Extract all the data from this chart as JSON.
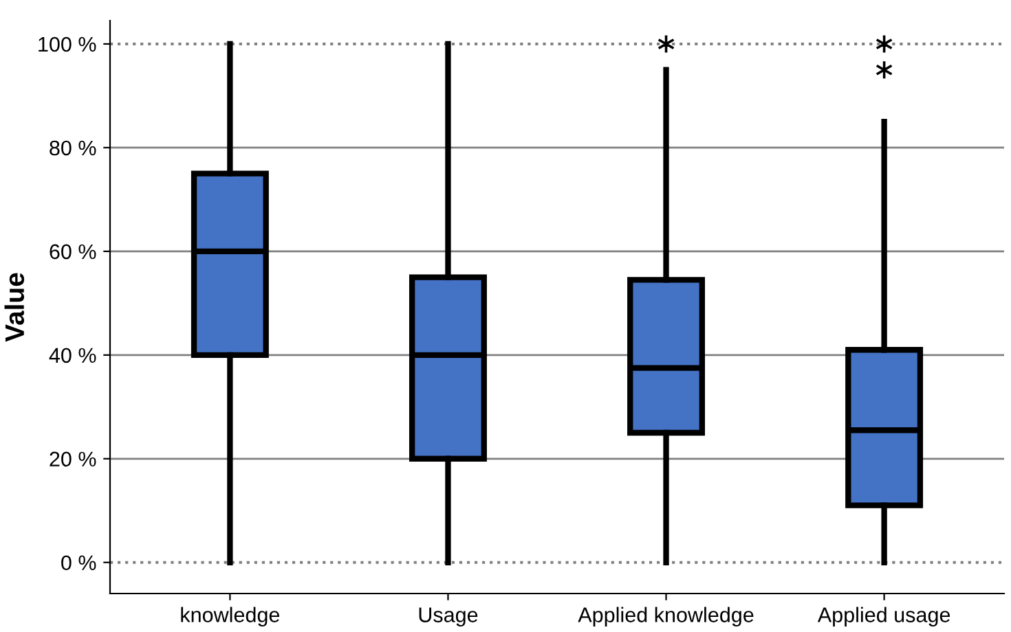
{
  "chart_data": {
    "type": "box",
    "ylabel": "Value",
    "categories": [
      "knowledge",
      "Usage",
      "Applied knowledge",
      "Applied usage"
    ],
    "color": "#4472c4",
    "boxes": [
      {
        "low": 0,
        "q1": 40,
        "median": 60,
        "q3": 75,
        "high": 100
      },
      {
        "low": 0,
        "q1": 20,
        "median": 40,
        "q3": 55,
        "high": 100
      },
      {
        "low": 0,
        "q1": 25,
        "median": 37.5,
        "q3": 54.5,
        "high": 95,
        "outliers": [
          100
        ]
      },
      {
        "low": 0,
        "q1": 11,
        "median": 25.5,
        "q3": 41,
        "high": 85,
        "outliers": [
          100,
          95
        ]
      }
    ],
    "ylim": [
      -6,
      104.5
    ],
    "yticks": [
      {
        "value": 0,
        "label": "0 %"
      },
      {
        "value": 20,
        "label": "20 %"
      },
      {
        "value": 40,
        "label": "40 %"
      },
      {
        "value": 60,
        "label": "60 %"
      },
      {
        "value": 80,
        "label": "80 %"
      },
      {
        "value": 100,
        "label": "100 %"
      }
    ],
    "grid": "y"
  }
}
